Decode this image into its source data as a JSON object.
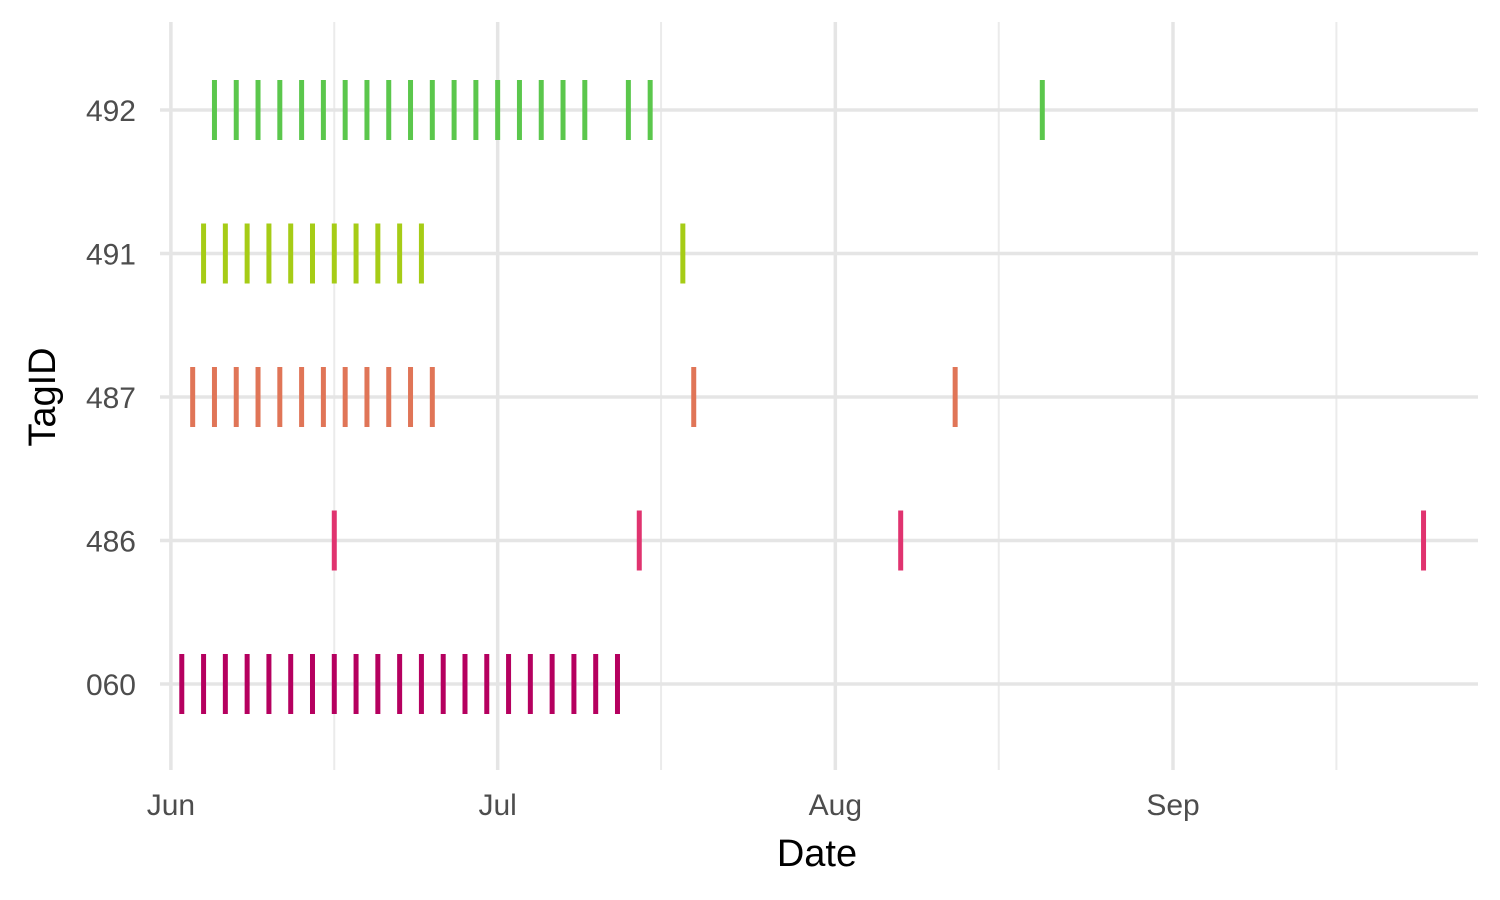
{
  "chart_data": {
    "type": "scatter",
    "mark": "vertical tick",
    "title": "",
    "xlabel": "Date",
    "ylabel": "TagID",
    "x_axis": {
      "type": "date",
      "xlim": [
        "2023-05-31",
        "2023-09-29"
      ],
      "ticks": [
        {
          "date": "2023-06-01",
          "label": "Jun"
        },
        {
          "date": "2023-07-01",
          "label": "Jul"
        },
        {
          "date": "2023-08-01",
          "label": "Aug"
        },
        {
          "date": "2023-09-01",
          "label": "Sep"
        }
      ],
      "minor_ticks": [
        "2023-06-16",
        "2023-07-16",
        "2023-08-16",
        "2023-09-16"
      ]
    },
    "categories": [
      "060",
      "486",
      "487",
      "491",
      "492"
    ],
    "grid": true,
    "legend": "none",
    "series": [
      {
        "category": "060",
        "color": "#b5005f",
        "dates": [
          "2023-06-02",
          "2023-06-04",
          "2023-06-06",
          "2023-06-08",
          "2023-06-10",
          "2023-06-12",
          "2023-06-14",
          "2023-06-16",
          "2023-06-18",
          "2023-06-20",
          "2023-06-22",
          "2023-06-24",
          "2023-06-26",
          "2023-06-28",
          "2023-06-30",
          "2023-07-02",
          "2023-07-04",
          "2023-07-06",
          "2023-07-08",
          "2023-07-10",
          "2023-07-12"
        ]
      },
      {
        "category": "486",
        "color": "#e0336f",
        "dates": [
          "2023-06-16",
          "2023-07-14",
          "2023-08-07",
          "2023-09-24"
        ]
      },
      {
        "category": "487",
        "color": "#e07557",
        "dates": [
          "2023-06-03",
          "2023-06-05",
          "2023-06-07",
          "2023-06-09",
          "2023-06-11",
          "2023-06-13",
          "2023-06-15",
          "2023-06-17",
          "2023-06-19",
          "2023-06-21",
          "2023-06-23",
          "2023-06-25",
          "2023-07-19",
          "2023-08-12"
        ]
      },
      {
        "category": "491",
        "color": "#a6cc16",
        "dates": [
          "2023-06-04",
          "2023-06-06",
          "2023-06-08",
          "2023-06-10",
          "2023-06-12",
          "2023-06-14",
          "2023-06-16",
          "2023-06-18",
          "2023-06-20",
          "2023-06-22",
          "2023-06-24",
          "2023-07-18"
        ]
      },
      {
        "category": "492",
        "color": "#5bc74c",
        "dates": [
          "2023-06-05",
          "2023-06-07",
          "2023-06-09",
          "2023-06-11",
          "2023-06-13",
          "2023-06-15",
          "2023-06-17",
          "2023-06-19",
          "2023-06-21",
          "2023-06-23",
          "2023-06-25",
          "2023-06-27",
          "2023-06-29",
          "2023-07-01",
          "2023-07-03",
          "2023-07-05",
          "2023-07-07",
          "2023-07-09",
          "2023-07-13",
          "2023-07-15",
          "2023-08-20"
        ]
      }
    ]
  }
}
